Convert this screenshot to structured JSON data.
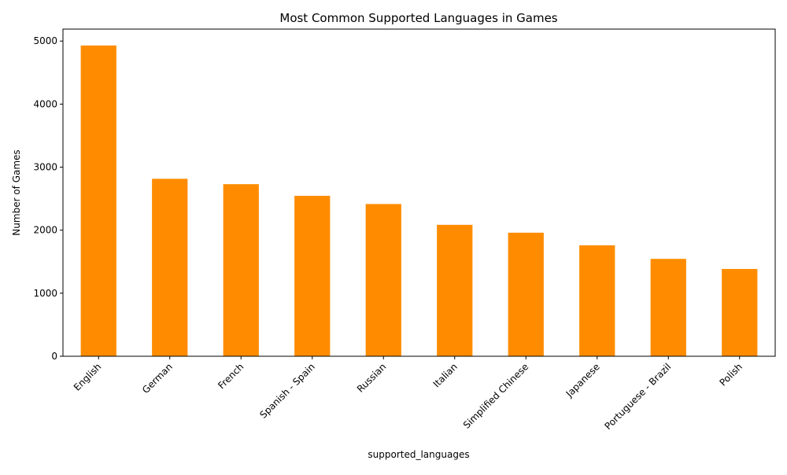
{
  "chart_data": {
    "type": "bar",
    "title": "Most Common Supported Languages in Games",
    "xlabel": "supported_languages",
    "ylabel": "Number of Games",
    "categories": [
      "English",
      "German",
      "French",
      "Spanish - Spain",
      "Russian",
      "Italian",
      "Simplified Chinese",
      "Japanese",
      "Portuguese - Brazil",
      "Polish"
    ],
    "values": [
      4930,
      2815,
      2730,
      2545,
      2415,
      2085,
      1960,
      1760,
      1545,
      1385
    ],
    "ylim": [
      0,
      5190
    ],
    "yticks": [
      0,
      1000,
      2000,
      3000,
      4000,
      5000
    ],
    "bar_color": "#ff8c00",
    "grid": false,
    "legend": false
  }
}
